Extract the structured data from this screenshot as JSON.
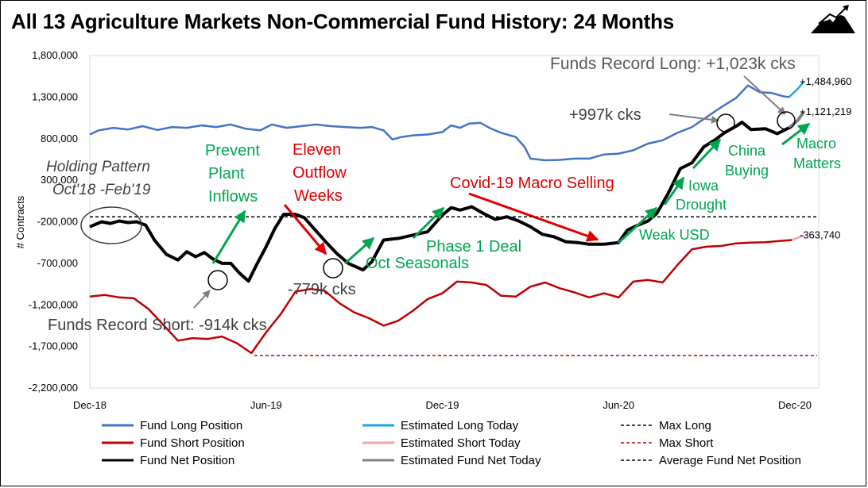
{
  "title": "All 13 Agriculture Markets Non-Commercial Fund History: 24 Months",
  "logo": "mountain-logo",
  "colors": {
    "long": "#4472c4",
    "long_est": "#19a9e3",
    "short": "#c00000",
    "short_est": "#f4a3a3",
    "net": "#000000",
    "net_est": "#808080",
    "green": "#00a550",
    "red": "#e00000",
    "gray": "#595959"
  },
  "chart_data": {
    "type": "line",
    "ylabel": "# Contracts",
    "ylim": [
      -2200000,
      1800000
    ],
    "yticks": [
      1800000,
      1300000,
      800000,
      300000,
      -200000,
      -700000,
      -1200000,
      -1700000,
      -2200000
    ],
    "ytick_labels": [
      "1,800,000",
      "1,300,000",
      "800,000",
      "300,000",
      "-200,000",
      "-700,000",
      "-1,200,000",
      "-1,700,000",
      "-2,200,000"
    ],
    "xlim": [
      0,
      24
    ],
    "xticks": [
      0,
      6,
      12,
      18,
      24
    ],
    "xtick_labels": [
      "Dec-18",
      "Jun-19",
      "Dec-19",
      "Jun-20",
      "Dec-20"
    ],
    "series": [
      {
        "name": "Fund Long Position",
        "key": "long",
        "points": [
          [
            0,
            850000
          ],
          [
            0.3,
            900000
          ],
          [
            0.8,
            930000
          ],
          [
            1.3,
            910000
          ],
          [
            1.8,
            950000
          ],
          [
            2.3,
            905000
          ],
          [
            2.8,
            940000
          ],
          [
            3.3,
            930000
          ],
          [
            3.8,
            960000
          ],
          [
            4.3,
            940000
          ],
          [
            4.8,
            970000
          ],
          [
            5.3,
            920000
          ],
          [
            5.8,
            900000
          ],
          [
            6.2,
            970000
          ],
          [
            6.7,
            930000
          ],
          [
            7.2,
            950000
          ],
          [
            7.7,
            970000
          ],
          [
            8.2,
            950000
          ],
          [
            8.7,
            940000
          ],
          [
            9.2,
            930000
          ],
          [
            9.6,
            940000
          ],
          [
            10.0,
            900000
          ],
          [
            10.3,
            790000
          ],
          [
            10.6,
            820000
          ],
          [
            11.0,
            840000
          ],
          [
            11.5,
            850000
          ],
          [
            12.0,
            880000
          ],
          [
            12.3,
            960000
          ],
          [
            12.6,
            930000
          ],
          [
            12.9,
            980000
          ],
          [
            13.3,
            990000
          ],
          [
            13.6,
            930000
          ],
          [
            14.0,
            870000
          ],
          [
            14.5,
            820000
          ],
          [
            14.8,
            700000
          ],
          [
            15.0,
            560000
          ],
          [
            15.5,
            540000
          ],
          [
            16.0,
            545000
          ],
          [
            16.5,
            560000
          ],
          [
            17.0,
            560000
          ],
          [
            17.5,
            610000
          ],
          [
            18.0,
            620000
          ],
          [
            18.5,
            660000
          ],
          [
            19.0,
            740000
          ],
          [
            19.5,
            780000
          ],
          [
            20.0,
            870000
          ],
          [
            20.5,
            940000
          ],
          [
            21.0,
            1060000
          ],
          [
            21.5,
            1180000
          ],
          [
            22.0,
            1290000
          ],
          [
            22.4,
            1440000
          ],
          [
            22.8,
            1360000
          ],
          [
            23.2,
            1350000
          ],
          [
            23.6,
            1310000
          ],
          [
            23.8,
            1300000
          ]
        ]
      },
      {
        "name": "Estimated Long Today",
        "key": "long_est",
        "points": [
          [
            23.8,
            1300000
          ],
          [
            24.1,
            1400000
          ],
          [
            24.3,
            1484960
          ]
        ]
      },
      {
        "name": "Fund Short Position",
        "key": "short",
        "points": [
          [
            0,
            -1100000
          ],
          [
            0.5,
            -1080000
          ],
          [
            1.0,
            -1110000
          ],
          [
            1.5,
            -1120000
          ],
          [
            2.0,
            -1250000
          ],
          [
            2.5,
            -1440000
          ],
          [
            3.0,
            -1630000
          ],
          [
            3.5,
            -1600000
          ],
          [
            4.0,
            -1610000
          ],
          [
            4.5,
            -1580000
          ],
          [
            5.0,
            -1660000
          ],
          [
            5.5,
            -1780000
          ],
          [
            6.0,
            -1530000
          ],
          [
            6.5,
            -1310000
          ],
          [
            7.0,
            -1040000
          ],
          [
            7.5,
            -1010000
          ],
          [
            8.0,
            -1030000
          ],
          [
            8.5,
            -1180000
          ],
          [
            9.0,
            -1290000
          ],
          [
            9.5,
            -1360000
          ],
          [
            10.0,
            -1450000
          ],
          [
            10.5,
            -1390000
          ],
          [
            11.0,
            -1270000
          ],
          [
            11.5,
            -1130000
          ],
          [
            12.0,
            -1060000
          ],
          [
            12.5,
            -920000
          ],
          [
            13.0,
            -930000
          ],
          [
            13.5,
            -960000
          ],
          [
            14.0,
            -1090000
          ],
          [
            14.5,
            -1100000
          ],
          [
            15.0,
            -980000
          ],
          [
            15.5,
            -930000
          ],
          [
            16.0,
            -1000000
          ],
          [
            16.5,
            -1050000
          ],
          [
            17.0,
            -1110000
          ],
          [
            17.5,
            -1060000
          ],
          [
            18.0,
            -1110000
          ],
          [
            18.5,
            -920000
          ],
          [
            19.0,
            -900000
          ],
          [
            19.5,
            -930000
          ],
          [
            20.0,
            -720000
          ],
          [
            20.5,
            -530000
          ],
          [
            21.0,
            -500000
          ],
          [
            21.5,
            -490000
          ],
          [
            22.0,
            -460000
          ],
          [
            22.5,
            -450000
          ],
          [
            23.0,
            -445000
          ],
          [
            23.5,
            -430000
          ],
          [
            23.9,
            -420000
          ]
        ]
      },
      {
        "name": "Estimated Short Today",
        "key": "short_est",
        "points": [
          [
            23.9,
            -420000
          ],
          [
            24.3,
            -363740
          ]
        ]
      },
      {
        "name": "Fund Net Position",
        "key": "net",
        "points": [
          [
            0,
            -260000
          ],
          [
            0.4,
            -200000
          ],
          [
            0.7,
            -220000
          ],
          [
            1.0,
            -190000
          ],
          [
            1.3,
            -210000
          ],
          [
            1.6,
            -200000
          ],
          [
            1.9,
            -240000
          ],
          [
            2.2,
            -420000
          ],
          [
            2.6,
            -590000
          ],
          [
            3.0,
            -660000
          ],
          [
            3.3,
            -560000
          ],
          [
            3.6,
            -620000
          ],
          [
            3.9,
            -570000
          ],
          [
            4.2,
            -650000
          ],
          [
            4.5,
            -700000
          ],
          [
            4.8,
            -700000
          ],
          [
            5.1,
            -820000
          ],
          [
            5.4,
            -914000
          ],
          [
            5.7,
            -700000
          ],
          [
            6.0,
            -500000
          ],
          [
            6.3,
            -280000
          ],
          [
            6.6,
            -110000
          ],
          [
            7.0,
            -110000
          ],
          [
            7.3,
            -150000
          ],
          [
            7.6,
            -270000
          ],
          [
            8.0,
            -430000
          ],
          [
            8.4,
            -580000
          ],
          [
            8.8,
            -700000
          ],
          [
            9.3,
            -779000
          ],
          [
            9.6,
            -680000
          ],
          [
            10.0,
            -420000
          ],
          [
            10.5,
            -400000
          ],
          [
            11.0,
            -360000
          ],
          [
            11.5,
            -320000
          ],
          [
            12.0,
            -120000
          ],
          [
            12.3,
            -30000
          ],
          [
            12.6,
            -60000
          ],
          [
            13.0,
            -20000
          ],
          [
            13.4,
            -100000
          ],
          [
            13.8,
            -170000
          ],
          [
            14.2,
            -140000
          ],
          [
            14.6,
            -190000
          ],
          [
            15.0,
            -260000
          ],
          [
            15.4,
            -350000
          ],
          [
            15.8,
            -380000
          ],
          [
            16.2,
            -440000
          ],
          [
            16.6,
            -450000
          ],
          [
            17.0,
            -470000
          ],
          [
            17.5,
            -470000
          ],
          [
            18.0,
            -450000
          ],
          [
            18.3,
            -300000
          ],
          [
            18.6,
            -250000
          ],
          [
            19.0,
            -190000
          ],
          [
            19.3,
            -100000
          ],
          [
            19.7,
            150000
          ],
          [
            20.1,
            440000
          ],
          [
            20.5,
            510000
          ],
          [
            20.9,
            700000
          ],
          [
            21.3,
            790000
          ],
          [
            21.6,
            870000
          ],
          [
            22.0,
            950000
          ],
          [
            22.2,
            997000
          ],
          [
            22.5,
            910000
          ],
          [
            23.0,
            920000
          ],
          [
            23.4,
            860000
          ],
          [
            23.8,
            930000
          ]
        ]
      },
      {
        "name": "Estimated Fund Net Today",
        "key": "net_est",
        "points": [
          [
            23.8,
            930000
          ],
          [
            24.1,
            1020000
          ],
          [
            24.3,
            1121219
          ]
        ]
      }
    ],
    "reference_lines": [
      {
        "name": "Max Long",
        "key": "long",
        "y": 1484960,
        "style": "dashed"
      },
      {
        "name": "Max Short",
        "key": "short",
        "y": -1810000,
        "style": "dashed"
      },
      {
        "name": "Average Fund Net Position",
        "key": "net",
        "y": -140000,
        "style": "dashed"
      }
    ],
    "end_labels": [
      {
        "text": "+1,484,960",
        "y": 1484960
      },
      {
        "text": "+1,121,219",
        "y": 1121219
      },
      {
        "text": "-363,740",
        "y": -363740
      }
    ],
    "annotations": {
      "record_long": "Funds Record Long: +1,023k cks",
      "k997": "+997k cks",
      "holding1": "Holding Pattern",
      "holding2": "Oct'18 -Feb'19",
      "prevent1": "Prevent",
      "prevent2": "Plant",
      "prevent3": "Inflows",
      "eleven1": "Eleven",
      "eleven2": "Outflow",
      "eleven3": "Weeks",
      "covid": "Covid-19 Macro Selling",
      "iowa1": "Iowa",
      "iowa2": "Drought",
      "china1": "China",
      "china2": "Buying",
      "macro1": "Macro",
      "macro2": "Matters",
      "oct_seasonals": "Oct Seasonals",
      "phase1": "Phase 1 Deal",
      "weak_usd": "Weak USD",
      "k779": "-779k cks",
      "record_short": "Funds Record Short: -914k cks"
    }
  },
  "legend": [
    {
      "label": "Fund Long Position",
      "key": "long",
      "style": "solid"
    },
    {
      "label": "Estimated Long Today",
      "key": "long_est",
      "style": "solid"
    },
    {
      "label": "Max Long",
      "key": "net",
      "style": "dashed"
    },
    {
      "label": "Fund Short Position",
      "key": "short",
      "style": "solid"
    },
    {
      "label": "Estimated Short Today",
      "key": "short_est",
      "style": "solid"
    },
    {
      "label": "Max Short",
      "key": "short",
      "style": "dashed"
    },
    {
      "label": "Fund Net Position",
      "key": "net",
      "style": "solid"
    },
    {
      "label": "Estimated Fund Net Today",
      "key": "net_est",
      "style": "solid"
    },
    {
      "label": "Average Fund Net Position",
      "key": "net",
      "style": "dashed"
    }
  ]
}
